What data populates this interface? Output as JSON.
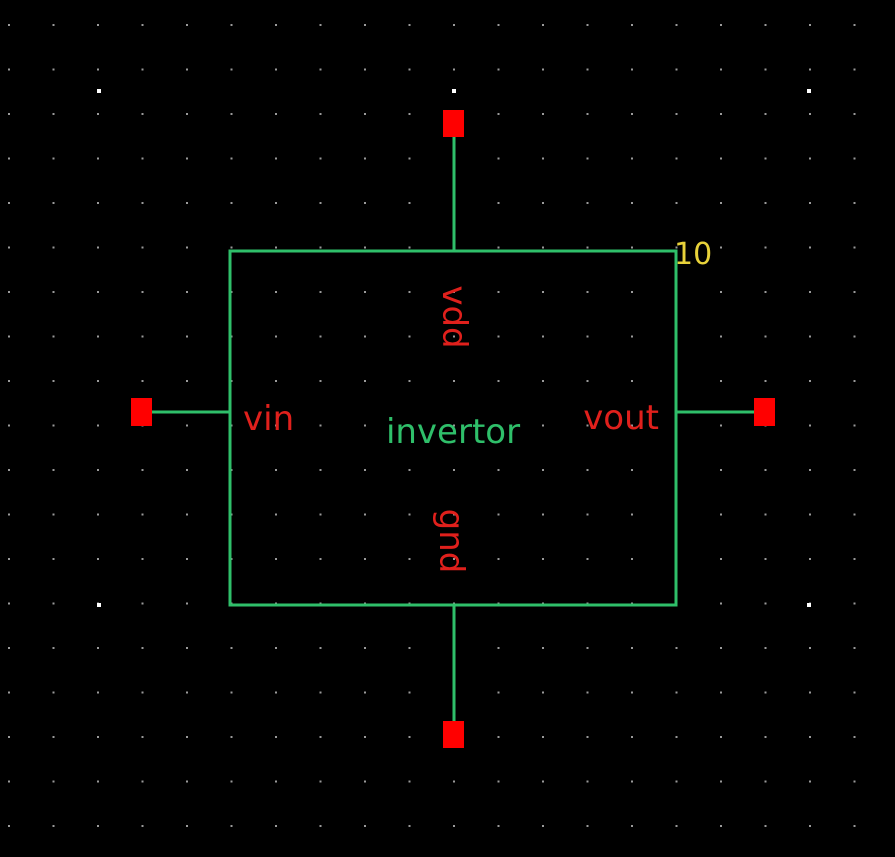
{
  "symbol": {
    "cell_name": "invertor",
    "instance_label": "10",
    "pins": {
      "vdd": "vdd",
      "gnd": "gnd",
      "vin": "vin",
      "vout": "vout"
    }
  },
  "colors": {
    "background": "#000000",
    "grid_dot": "#9a9a9a",
    "grid_dot_major": "#ffffff",
    "symbol_outline": "#2fbf6a",
    "pin_square": "#ff0000",
    "pin_label": "#e0201c",
    "cell_name": "#2fbf6a",
    "instance_label": "#e8d23a"
  }
}
